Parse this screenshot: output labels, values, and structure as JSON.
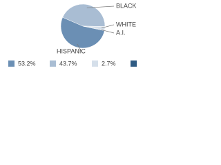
{
  "chart_data": {
    "type": "pie",
    "categories": [
      "HISPANIC",
      "BLACK",
      "WHITE",
      "A.I."
    ],
    "values": [
      53.2,
      43.7,
      2.7,
      0.4
    ],
    "value_labels": [
      "53.2%",
      "43.7%",
      "2.7%",
      null
    ],
    "colors": [
      "#6b8fb4",
      "#a9bdd3",
      "#d5dfea",
      "#2f5b83"
    ]
  }
}
